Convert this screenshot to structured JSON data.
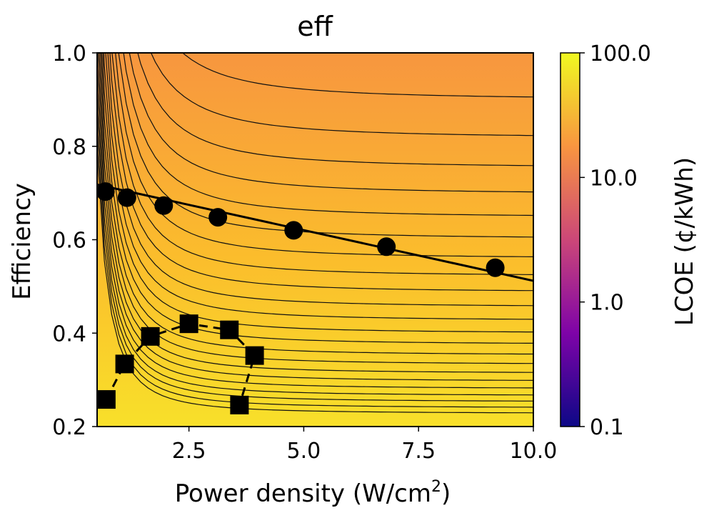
{
  "chart_data": {
    "type": "contour",
    "title": "eff",
    "xlabel": "Power density (W/cm",
    "xlabel_sup": "2",
    "xlabel_close": ")",
    "ylabel": "Efficiency",
    "xlim": [
      0.5,
      10.0
    ],
    "ylim": [
      0.2,
      1.0
    ],
    "x_ticks": [
      2.5,
      5.0,
      7.5,
      10.0
    ],
    "x_tick_labels": [
      "2.5",
      "5.0",
      "7.5",
      "10.0"
    ],
    "y_ticks": [
      0.2,
      0.4,
      0.6,
      0.8,
      1.0
    ],
    "y_tick_labels": [
      "0.2",
      "0.4",
      "0.6",
      "0.8",
      "1.0"
    ],
    "colorbar": {
      "label": "LCOE (¢/kWh)",
      "scale": "log",
      "range": [
        0.1,
        100.0
      ],
      "ticks": [
        0.1,
        1.0,
        10.0,
        100.0
      ],
      "tick_labels": [
        "0.1",
        "1.0",
        "10.0",
        "100.0"
      ],
      "colormap": [
        "#0d0887",
        "#7e03a8",
        "#cc4778",
        "#f89540",
        "#f0f921"
      ]
    },
    "contour_levels_y_at_x10": [
      0.228,
      0.24,
      0.253,
      0.266,
      0.281,
      0.297,
      0.314,
      0.333,
      0.353,
      0.376,
      0.4,
      0.427,
      0.456,
      0.488,
      0.522,
      0.56,
      0.602,
      0.648,
      0.698,
      0.754,
      0.818,
      0.9
    ],
    "series": [
      {
        "marker": "circle",
        "line": "solid",
        "x": [
          0.68,
          1.15,
          1.95,
          3.13,
          4.78,
          6.8,
          9.17
        ],
        "y": [
          0.703,
          0.69,
          0.673,
          0.648,
          0.62,
          0.585,
          0.54
        ],
        "fit_line": {
          "x": [
            0.5,
            10.0
          ],
          "y": [
            0.718,
            0.512
          ]
        }
      },
      {
        "marker": "square",
        "line": "dashed",
        "x": [
          0.7,
          1.1,
          1.66,
          2.5,
          3.38,
          3.93,
          3.6
        ],
        "y": [
          0.258,
          0.334,
          0.393,
          0.42,
          0.407,
          0.352,
          0.246
        ]
      }
    ]
  }
}
